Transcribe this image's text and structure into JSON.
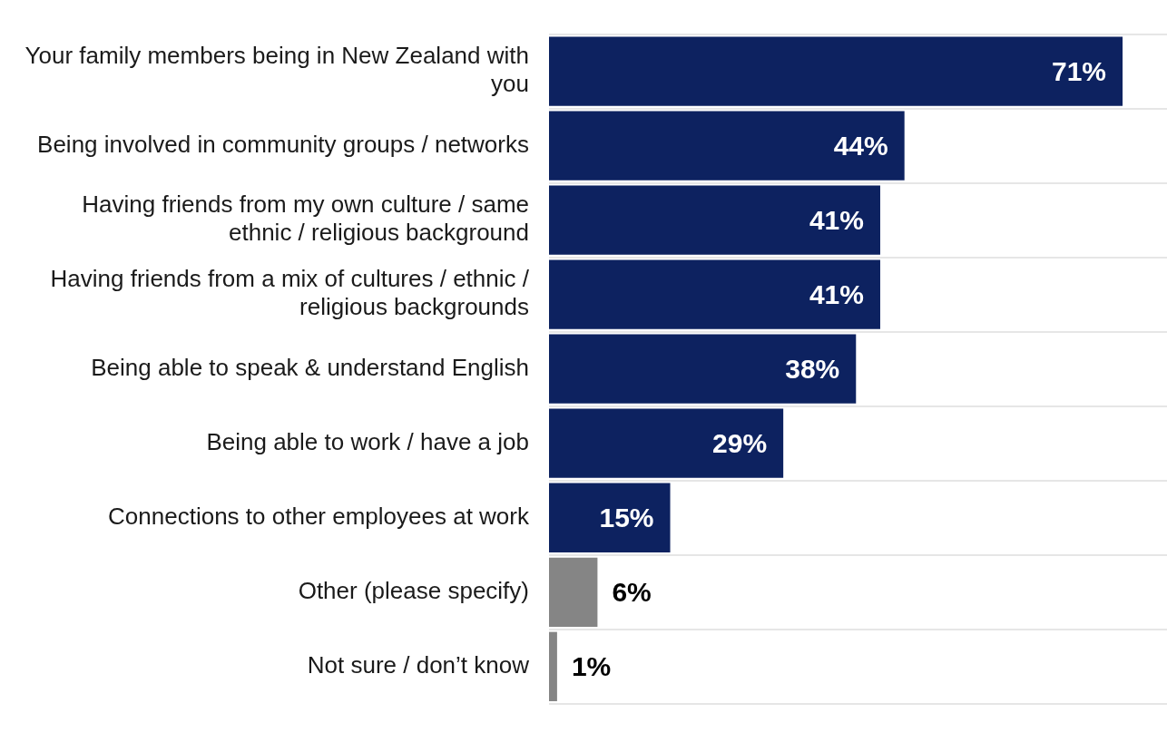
{
  "chart_data": {
    "type": "bar",
    "orientation": "horizontal",
    "categories": [
      "Your family members being in New Zealand with you",
      "Being involved in community groups / networks",
      "Having friends from my own culture / same ethnic / religious background",
      "Having friends from a mix of cultures / ethnic / religious backgrounds",
      "Being able to speak & understand English",
      "Being able to work / have a job",
      "Connections to other employees at work",
      "Other (please specify)",
      "Not sure / don’t know"
    ],
    "values": [
      71,
      44,
      41,
      41,
      38,
      29,
      15,
      6,
      1
    ],
    "colors": [
      "#0d2260",
      "#0d2260",
      "#0d2260",
      "#0d2260",
      "#0d2260",
      "#0d2260",
      "#0d2260",
      "#858585",
      "#858585"
    ],
    "value_labels": [
      "71%",
      "44%",
      "41%",
      "41%",
      "38%",
      "29%",
      "15%",
      "6%",
      "1%"
    ],
    "xlim": [
      0,
      76.5
    ],
    "grid": "y"
  }
}
